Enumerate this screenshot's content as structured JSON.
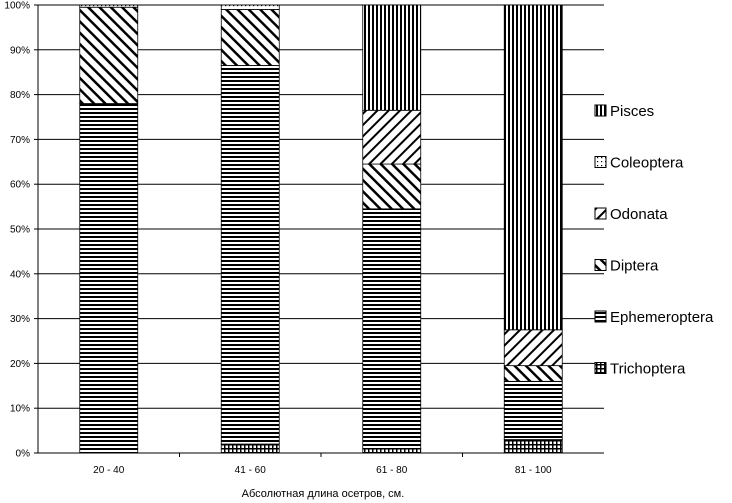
{
  "chart_data": {
    "type": "bar",
    "stacked": true,
    "normalized": true,
    "xlabel": "Абсолютная длина осетров, см.",
    "ylabel": "",
    "title": "",
    "ylim": [
      0,
      100
    ],
    "yticks": [
      "0%",
      "10%",
      "20%",
      "30%",
      "40%",
      "50%",
      "60%",
      "70%",
      "80%",
      "90%",
      "100%"
    ],
    "grid": true,
    "legend_position": "right",
    "categories": [
      "20 - 40",
      "41 - 60",
      "61 - 80",
      "81 - 100"
    ],
    "series": [
      {
        "name": "Trichoptera",
        "pattern": "grid",
        "values": [
          0,
          2,
          1,
          3
        ]
      },
      {
        "name": "Ephemeroptera",
        "pattern": "horizontal",
        "values": [
          78,
          84.5,
          53.5,
          13
        ]
      },
      {
        "name": "Diptera",
        "pattern": "diag-up",
        "values": [
          21.5,
          12.5,
          10,
          3.5
        ]
      },
      {
        "name": "Odonata",
        "pattern": "diag-down",
        "values": [
          0,
          0,
          12,
          8
        ]
      },
      {
        "name": "Coleoptera",
        "pattern": "dots",
        "values": [
          0.5,
          1,
          0,
          0
        ]
      },
      {
        "name": "Pisces",
        "pattern": "vertical",
        "values": [
          0,
          0,
          23.5,
          72.5
        ]
      }
    ],
    "legend_order": [
      "Pisces",
      "Coleoptera",
      "Odonata",
      "Diptera",
      "Ephemeroptera",
      "Trichoptera"
    ]
  }
}
